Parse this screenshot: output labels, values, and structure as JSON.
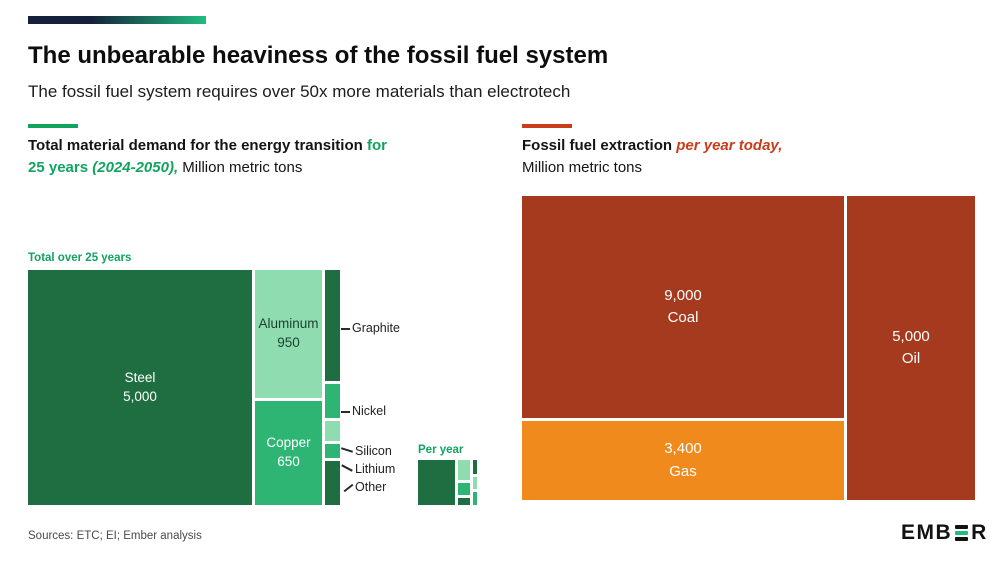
{
  "header": {
    "title": "The unbearable heaviness of the fossil fuel system",
    "subtitle": "The fossil fuel system requires over 50x more materials than electrotech"
  },
  "left_panel": {
    "heading": {
      "line1_black": "Total material demand for the energy transition",
      "line1_green": " for",
      "line2_green": "25 years ",
      "line2_green_italic": "(2024-2050),",
      "line2_units": " Million metric tons"
    },
    "total_label": "Total over 25 years",
    "per_year_label": "Per year",
    "cells": {
      "steel": {
        "name": "Steel",
        "value": "5,000"
      },
      "aluminum": {
        "name": "Aluminum",
        "value": "950"
      },
      "copper": {
        "name": "Copper",
        "value": "650"
      }
    },
    "callouts": [
      "Graphite",
      "Nickel",
      "Silicon",
      "Lithium",
      "Other"
    ]
  },
  "right_panel": {
    "heading": {
      "line1_black": "Fossil fuel extraction ",
      "line1_red_italic": "per year today,",
      "line2_units": "Million metric tons"
    },
    "cells": {
      "coal": {
        "value": "9,000",
        "name": "Coal"
      },
      "gas": {
        "value": "3,400",
        "name": "Gas"
      },
      "oil": {
        "value": "5,000",
        "name": "Oil"
      }
    }
  },
  "footer": {
    "sources": "Sources: ETC; EI; Ember analysis",
    "logo_prefix": "EMB",
    "logo_suffix": "R"
  },
  "colors": {
    "green_text": "#10a45f",
    "green_dark": "#1e6e41",
    "green_mid": "#2eb573",
    "green_light": "#8edcb0",
    "red_accent": "#c93d1a",
    "coal_red": "#a63a1e",
    "oil_red": "#a63a1e",
    "gas_orange": "#f18a1d",
    "stripe_navy": "#16203a",
    "stripe_green": "#21bd7f"
  },
  "chart_data": [
    {
      "type": "treemap",
      "title": "Total material demand for the energy transition for 25 years (2024-2050)",
      "units": "Million metric tons",
      "items": [
        {
          "label": "Steel",
          "value": 5000,
          "value_shown": true
        },
        {
          "label": "Aluminum",
          "value": 950,
          "value_shown": true
        },
        {
          "label": "Copper",
          "value": 650,
          "value_shown": true
        },
        {
          "label": "Graphite",
          "value": 160,
          "value_shown": false,
          "note": "estimated from area"
        },
        {
          "label": "Nickel",
          "value": 50,
          "value_shown": false,
          "note": "estimated from area"
        },
        {
          "label": "Silicon",
          "value": 25,
          "value_shown": false,
          "note": "estimated from area"
        },
        {
          "label": "Lithium",
          "value": 20,
          "value_shown": false,
          "note": "estimated from area"
        },
        {
          "label": "Other",
          "value": 60,
          "value_shown": false,
          "note": "estimated from area"
        }
      ],
      "inset_label": "Per year"
    },
    {
      "type": "treemap",
      "title": "Fossil fuel extraction per year today",
      "units": "Million metric tons",
      "items": [
        {
          "label": "Coal",
          "value": 9000
        },
        {
          "label": "Gas",
          "value": 3400
        },
        {
          "label": "Oil",
          "value": 5000
        }
      ]
    }
  ]
}
